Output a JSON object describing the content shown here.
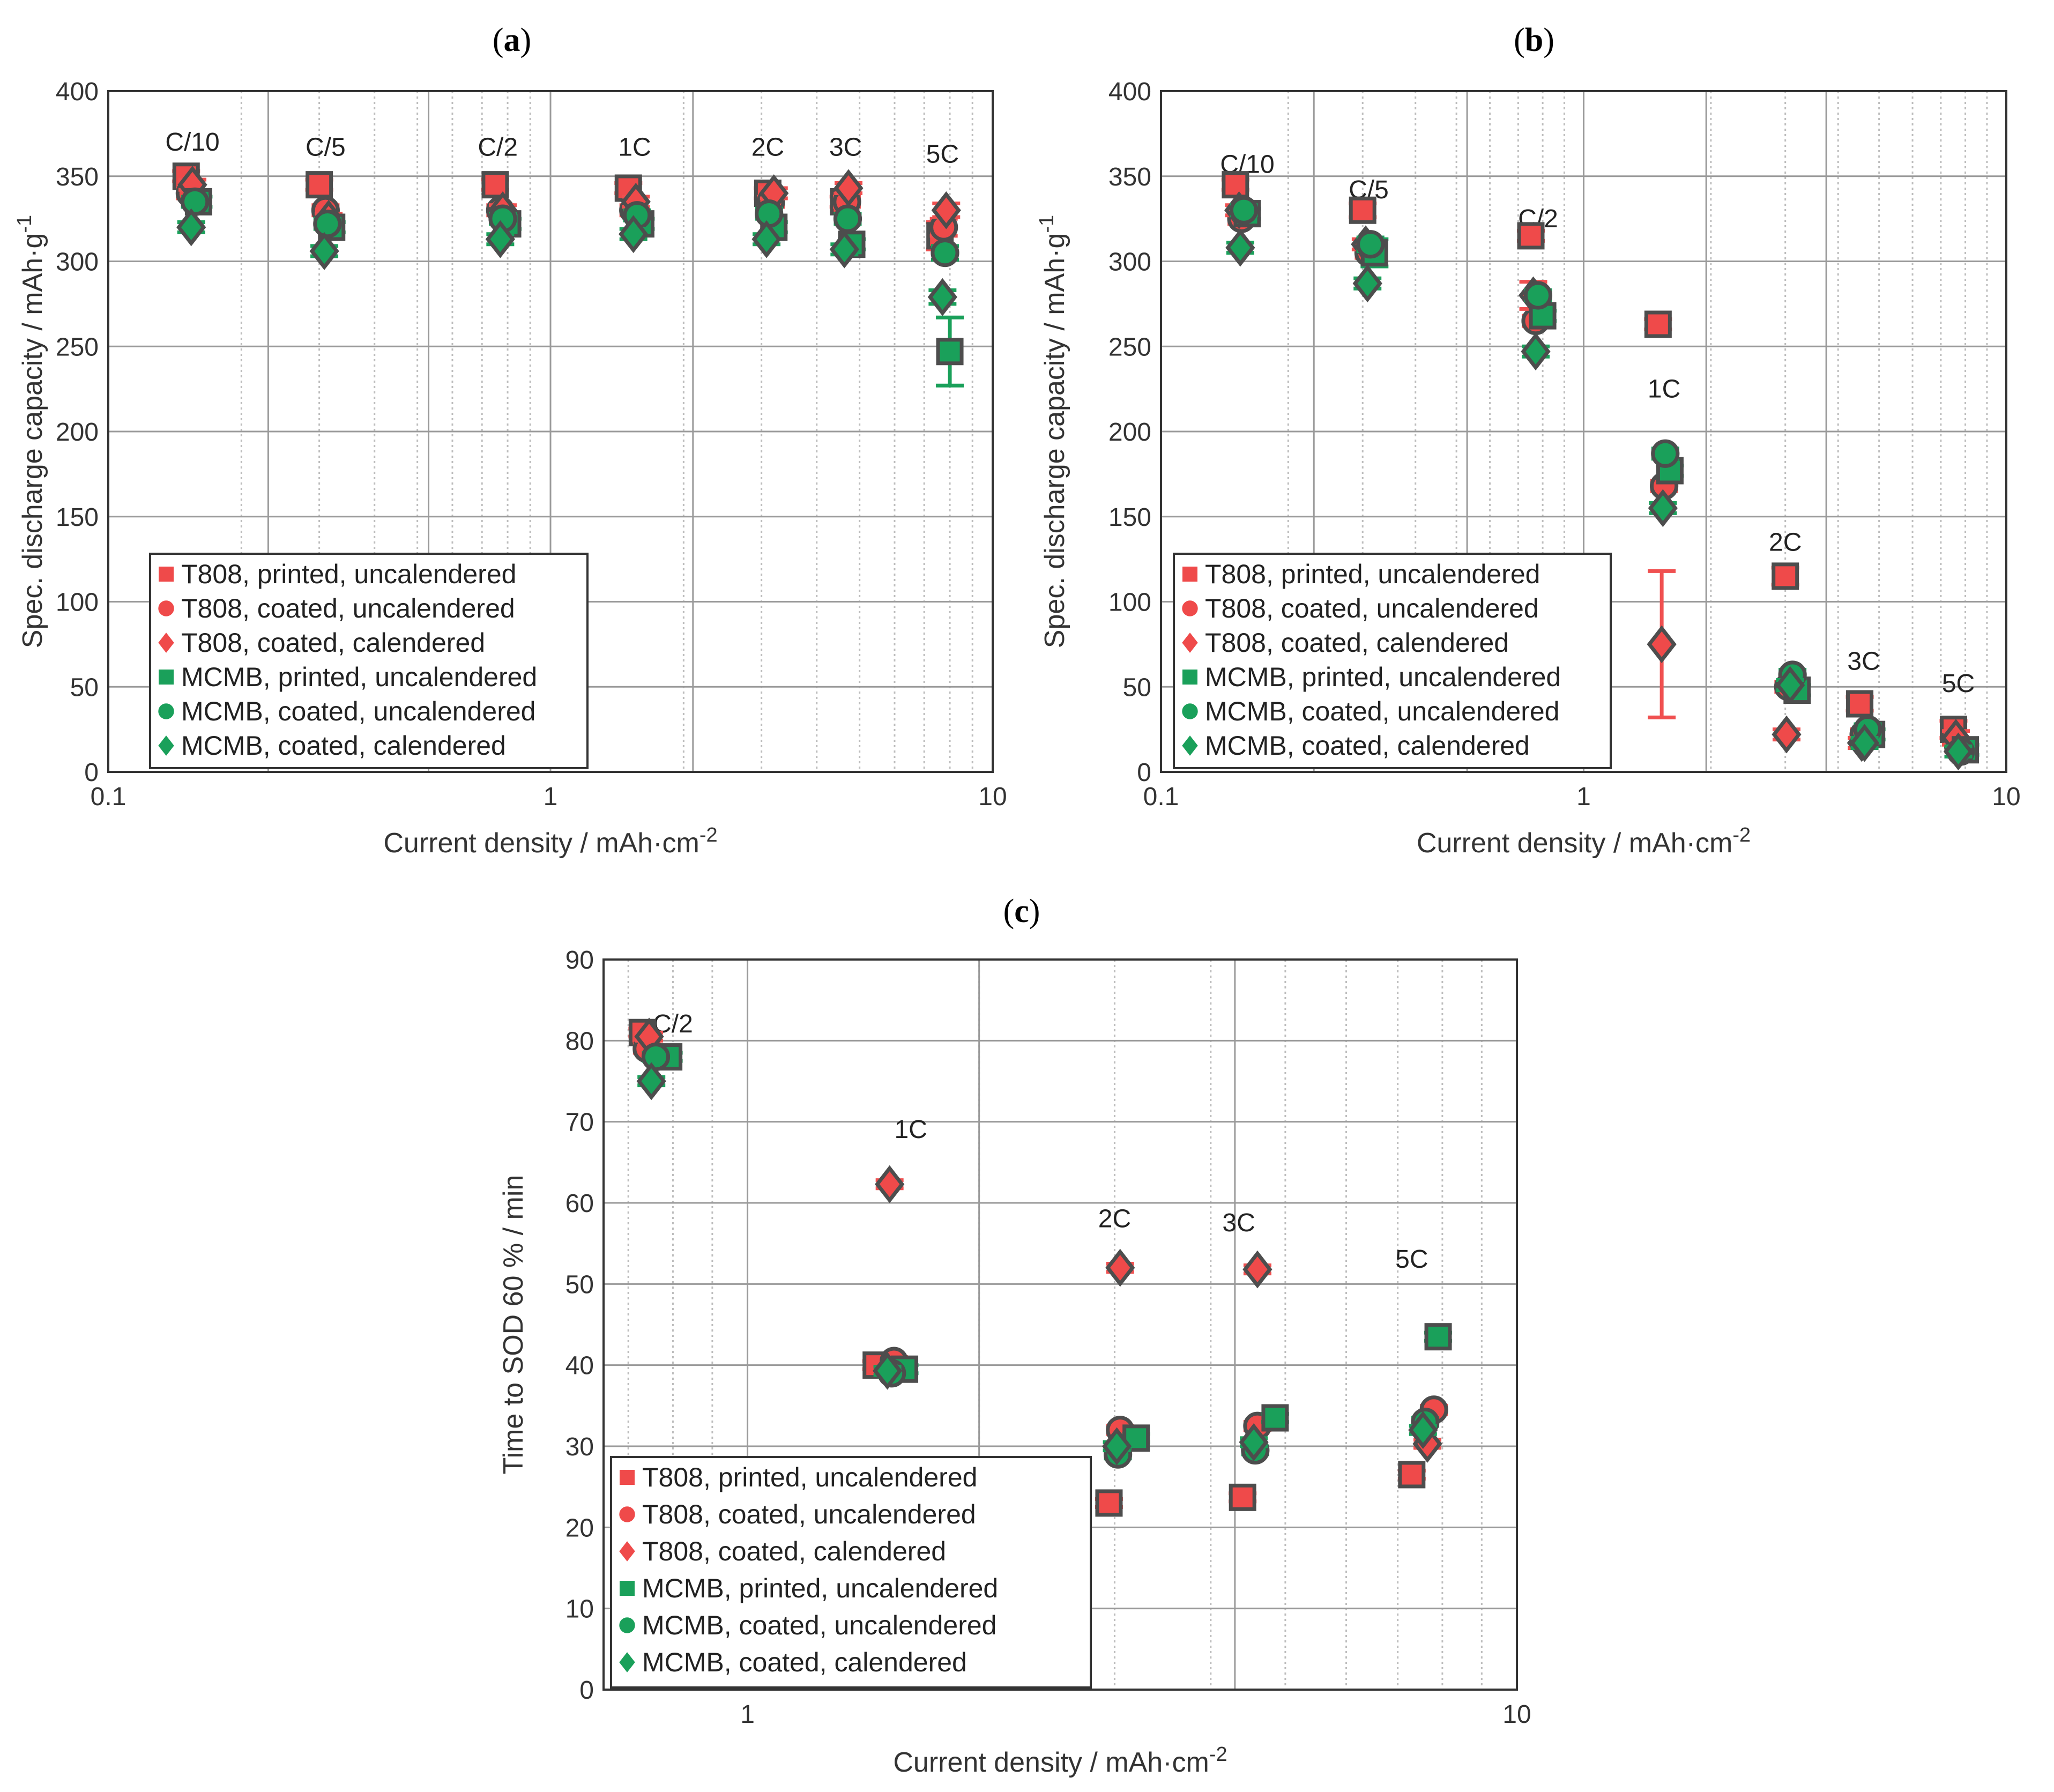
{
  "colors": {
    "red_fill": "#ef4a4a",
    "green_fill": "#1aa05a",
    "marker_edge": "#4d4d4d",
    "red_bar": "#f05050",
    "green_bar": "#1aa05a",
    "grid_major": "#9a9a9a",
    "grid_minor": "#bdbdbd",
    "axis": "#333333"
  },
  "legend_entries": [
    {
      "label": "T808, printed, uncalendered",
      "color": "#ef4a4a",
      "marker": "square"
    },
    {
      "label": "T808, coated, uncalendered",
      "color": "#ef4a4a",
      "marker": "circle"
    },
    {
      "label": "T808, coated, calendered",
      "color": "#ef4a4a",
      "marker": "diamond"
    },
    {
      "label": "MCMB, printed, uncalendered",
      "color": "#1aa05a",
      "marker": "square"
    },
    {
      "label": "MCMB, coated, uncalendered",
      "color": "#1aa05a",
      "marker": "circle"
    },
    {
      "label": "MCMB, coated, calendered",
      "color": "#1aa05a",
      "marker": "diamond"
    }
  ],
  "chart_data": [
    {
      "panel": "(a)",
      "panel_letter": "a",
      "type": "scatter",
      "xscale": "log",
      "xlim": [
        0.1,
        10
      ],
      "ylim": [
        0,
        400
      ],
      "xticks": [
        0.1,
        1,
        10
      ],
      "xtick_labels": [
        "0.1",
        "1",
        "10"
      ],
      "yticks": [
        0,
        50,
        100,
        150,
        200,
        250,
        300,
        350,
        400
      ],
      "xlabel": "Current density / mAh·cm",
      "xlabel_sup": "-2",
      "ylabel": "Spec. discharge capacity / mAh·g",
      "ylabel_sup": "-1",
      "legend_position": "bottom-left",
      "extra_vlines": [
        0.23,
        0.53,
        2.1
      ],
      "annotations": [
        {
          "text": "C/10",
          "x": 0.155,
          "y": 365
        },
        {
          "text": "C/5",
          "x": 0.31,
          "y": 362
        },
        {
          "text": "C/2",
          "x": 0.76,
          "y": 362
        },
        {
          "text": "1C",
          "x": 1.55,
          "y": 362
        },
        {
          "text": "2C",
          "x": 3.1,
          "y": 362
        },
        {
          "text": "3C",
          "x": 4.65,
          "y": 362
        },
        {
          "text": "5C",
          "x": 7.7,
          "y": 358
        }
      ],
      "series": [
        {
          "name": "T808, printed, uncalendered",
          "color": "#ef4a4a",
          "marker": "square",
          "x": [
            0.15,
            0.3,
            0.75,
            1.5,
            3.1,
            4.6,
            7.6
          ],
          "y": [
            350,
            345,
            345,
            343,
            340,
            335,
            315
          ],
          "err": [
            3,
            3,
            3,
            3,
            3,
            3,
            8
          ]
        },
        {
          "name": "T808, coated, uncalendered",
          "color": "#ef4a4a",
          "marker": "circle",
          "x": [
            0.153,
            0.31,
            0.77,
            1.54,
            3.15,
            4.68,
            7.75
          ],
          "y": [
            340,
            330,
            330,
            330,
            335,
            335,
            320
          ],
          "err": [
            3,
            3,
            3,
            3,
            3,
            3,
            5
          ]
        },
        {
          "name": "T808, coated, calendered",
          "color": "#ef4a4a",
          "marker": "diamond",
          "x": [
            0.155,
            0.315,
            0.78,
            1.56,
            3.2,
            4.72,
            7.85
          ],
          "y": [
            345,
            325,
            330,
            335,
            340,
            343,
            330
          ],
          "err": [
            3,
            3,
            3,
            3,
            3,
            3,
            4
          ]
        },
        {
          "name": "MCMB, printed, uncalendered",
          "color": "#1aa05a",
          "marker": "square",
          "x": [
            0.16,
            0.32,
            0.8,
            1.6,
            3.2,
            4.8,
            8.0
          ],
          "y": [
            335,
            320,
            322,
            322,
            320,
            310,
            247
          ],
          "err": [
            3,
            3,
            3,
            3,
            3,
            3,
            20
          ]
        },
        {
          "name": "MCMB, coated, uncalendered",
          "color": "#1aa05a",
          "marker": "circle",
          "x": [
            0.157,
            0.313,
            0.78,
            1.57,
            3.12,
            4.7,
            7.8
          ],
          "y": [
            335,
            322,
            325,
            327,
            328,
            325,
            305
          ],
          "err": [
            3,
            3,
            3,
            3,
            3,
            3,
            4
          ]
        },
        {
          "name": "MCMB, coated, calendered",
          "color": "#1aa05a",
          "marker": "diamond",
          "x": [
            0.154,
            0.308,
            0.77,
            1.54,
            3.08,
            4.62,
            7.7
          ],
          "y": [
            320,
            306,
            313,
            316,
            313,
            307,
            279
          ],
          "err": [
            3,
            3,
            3,
            3,
            3,
            3,
            4
          ]
        }
      ]
    },
    {
      "panel": "(b)",
      "panel_letter": "b",
      "type": "scatter",
      "xscale": "log",
      "xlim": [
        0.1,
        10
      ],
      "ylim": [
        0,
        400
      ],
      "xticks": [
        0.1,
        1,
        10
      ],
      "xtick_labels": [
        "0.1",
        "1",
        "10"
      ],
      "yticks": [
        0,
        50,
        100,
        150,
        200,
        250,
        300,
        350,
        400
      ],
      "xlabel": "Current density / mAh·cm",
      "xlabel_sup": "-2",
      "ylabel": "Spec. discharge capacity / mAh·g",
      "ylabel_sup": "-1",
      "legend_position": "bottom-left",
      "extra_vlines": [
        0.23,
        0.53,
        1.95,
        3.75
      ],
      "annotations": [
        {
          "text": "C/10",
          "x": 0.16,
          "y": 352
        },
        {
          "text": "C/5",
          "x": 0.31,
          "y": 337
        },
        {
          "text": "C/2",
          "x": 0.78,
          "y": 320
        },
        {
          "text": "1C",
          "x": 1.55,
          "y": 220
        },
        {
          "text": "2C",
          "x": 3.0,
          "y": 130
        },
        {
          "text": "3C",
          "x": 4.6,
          "y": 60
        },
        {
          "text": "5C",
          "x": 7.7,
          "y": 47
        }
      ],
      "series": [
        {
          "name": "T808, printed, uncalendered",
          "color": "#ef4a4a",
          "marker": "square",
          "x": [
            0.15,
            0.3,
            0.75,
            1.5,
            3.0,
            4.5,
            7.5
          ],
          "y": [
            345,
            330,
            315,
            263,
            115,
            40,
            25
          ],
          "err": [
            3,
            4,
            3,
            3,
            5,
            4,
            5
          ]
        },
        {
          "name": "T808, coated, uncalendered",
          "color": "#ef4a4a",
          "marker": "circle",
          "x": [
            0.155,
            0.31,
            0.77,
            1.55,
            3.05,
            4.6,
            7.7
          ],
          "y": [
            325,
            305,
            265,
            168,
            50,
            22,
            15
          ],
          "err": [
            3,
            3,
            3,
            3,
            3,
            3,
            3
          ]
        },
        {
          "name": "T808, coated, calendered",
          "color": "#ef4a4a",
          "marker": "diamond",
          "x": [
            0.153,
            0.305,
            0.76,
            1.53,
            3.02,
            4.55,
            7.6
          ],
          "y": [
            330,
            310,
            280,
            75,
            22,
            17,
            20
          ],
          "err": [
            3,
            3,
            8,
            43,
            3,
            3,
            4
          ]
        },
        {
          "name": "MCMB, printed, uncalendered",
          "color": "#1aa05a",
          "marker": "square",
          "x": [
            0.16,
            0.32,
            0.8,
            1.6,
            3.2,
            4.8,
            8.0
          ],
          "y": [
            328,
            305,
            268,
            177,
            48,
            22,
            13
          ],
          "err": [
            3,
            8,
            3,
            3,
            3,
            3,
            3
          ]
        },
        {
          "name": "MCMB, coated, uncalendered",
          "color": "#1aa05a",
          "marker": "circle",
          "x": [
            0.157,
            0.313,
            0.78,
            1.56,
            3.12,
            4.7,
            7.8
          ],
          "y": [
            330,
            310,
            280,
            187,
            57,
            25,
            12
          ],
          "err": [
            3,
            4,
            3,
            3,
            3,
            3,
            3
          ]
        },
        {
          "name": "MCMB, coated, calendered",
          "color": "#1aa05a",
          "marker": "diamond",
          "x": [
            0.154,
            0.308,
            0.77,
            1.54,
            3.08,
            4.62,
            7.7
          ],
          "y": [
            308,
            287,
            247,
            155,
            51,
            17,
            12
          ],
          "err": [
            3,
            3,
            3,
            3,
            3,
            3,
            3
          ]
        }
      ]
    },
    {
      "panel": "(c)",
      "panel_letter": "c",
      "type": "scatter",
      "xscale": "log",
      "xlim": [
        0.65,
        10
      ],
      "ylim": [
        0,
        90
      ],
      "xticks": [
        1,
        10
      ],
      "xtick_labels": [
        "1",
        "10"
      ],
      "yticks": [
        0,
        10,
        20,
        30,
        40,
        50,
        60,
        70,
        80,
        90
      ],
      "xlabel": "Current density / mAh·cm",
      "xlabel_sup": "-2",
      "ylabel": "Time to SOD 60 % / min",
      "ylabel_sup": "",
      "legend_position": "bottom-left",
      "extra_vlines": [
        2.0,
        4.3
      ],
      "annotations": [
        {
          "text": "C/2",
          "x": 0.8,
          "y": 81
        },
        {
          "text": "1C",
          "x": 1.63,
          "y": 68
        },
        {
          "text": "2C",
          "x": 3.0,
          "y": 57
        },
        {
          "text": "3C",
          "x": 4.35,
          "y": 56.5
        },
        {
          "text": "5C",
          "x": 7.3,
          "y": 52
        }
      ],
      "series": [
        {
          "name": "T808, printed, uncalendered",
          "color": "#ef4a4a",
          "marker": "square",
          "x": [
            0.73,
            1.47,
            2.95,
            4.4,
            7.3
          ],
          "y": [
            81,
            40,
            23,
            23.7,
            26.5
          ],
          "err": [
            0.5,
            0.5,
            0.5,
            0.5,
            0.5
          ]
        },
        {
          "name": "T808, coated, uncalendered",
          "color": "#ef4a4a",
          "marker": "circle",
          "x": [
            0.74,
            1.55,
            3.05,
            4.6,
            7.8
          ],
          "y": [
            79,
            40.5,
            32,
            32.5,
            34.5
          ],
          "err": [
            0.5,
            0.5,
            0.5,
            0.5,
            0.5
          ]
        },
        {
          "name": "T808, coated, calendered",
          "color": "#ef4a4a",
          "marker": "diamond",
          "x": [
            0.745,
            1.53,
            3.05,
            4.6,
            7.65
          ],
          "y": [
            80.5,
            62.3,
            52,
            51.8,
            30.3
          ],
          "err": [
            0.5,
            0.5,
            0.5,
            0.5,
            0.5
          ]
        },
        {
          "name": "MCMB, printed, uncalendered",
          "color": "#1aa05a",
          "marker": "square",
          "x": [
            0.79,
            1.6,
            3.2,
            4.85,
            7.9
          ],
          "y": [
            78,
            39.5,
            31,
            33.5,
            43.5
          ],
          "err": [
            0.5,
            0.5,
            0.5,
            0.5,
            0.5
          ]
        },
        {
          "name": "MCMB, coated, uncalendered",
          "color": "#1aa05a",
          "marker": "circle",
          "x": [
            0.76,
            1.54,
            3.03,
            4.57,
            7.6
          ],
          "y": [
            78,
            39,
            29,
            29.5,
            33
          ],
          "err": [
            0.5,
            0.5,
            0.5,
            0.5,
            0.5
          ]
        },
        {
          "name": "MCMB, coated, calendered",
          "color": "#1aa05a",
          "marker": "diamond",
          "x": [
            0.75,
            1.52,
            3.02,
            4.55,
            7.55
          ],
          "y": [
            75,
            39.3,
            30,
            30.5,
            32
          ],
          "err": [
            0.5,
            0.5,
            0.5,
            0.5,
            0.5
          ]
        }
      ]
    }
  ]
}
